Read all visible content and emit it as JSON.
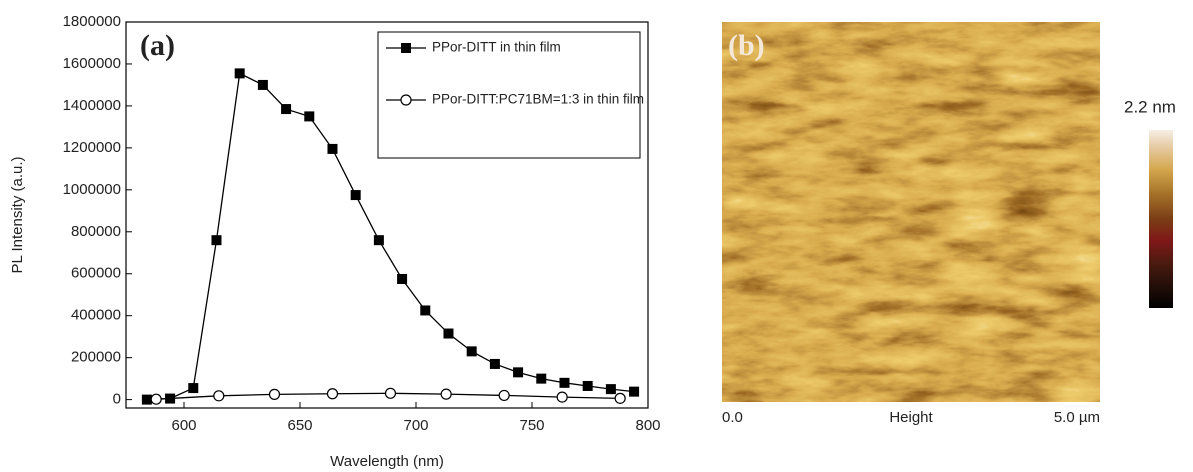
{
  "chart_data": {
    "type": "line",
    "panel_label": "(a)",
    "x_label": "Wavelength (nm)",
    "y_label": "PL Intensity (a.u.)",
    "xlim": [
      575,
      800
    ],
    "xticks": [
      600,
      650,
      700,
      750,
      800
    ],
    "ylim": [
      -40000,
      1800000
    ],
    "yticks": [
      0,
      200000,
      400000,
      600000,
      800000,
      1000000,
      1200000,
      1400000,
      1600000,
      1800000
    ],
    "legend": "upper right",
    "series": [
      {
        "name": "PPor-DITT in thin film",
        "color": "#000000",
        "marker": "filled-square",
        "x": [
          584,
          594,
          604,
          614,
          624,
          634,
          644,
          654,
          664,
          674,
          684,
          694,
          704,
          714,
          724,
          734,
          744,
          754,
          764,
          774,
          784,
          794
        ],
        "values": [
          0,
          5000,
          55000,
          760000,
          1555000,
          1500000,
          1385000,
          1350000,
          1195000,
          975000,
          760000,
          575000,
          425000,
          315000,
          230000,
          170000,
          130000,
          100000,
          80000,
          65000,
          50000,
          38000
        ]
      },
      {
        "name": "PPor-DITT:PC71BM=1:3 in thin film",
        "color": "#000000",
        "marker": "open-circle",
        "x": [
          588,
          615,
          639,
          664,
          689,
          713,
          738,
          763,
          788
        ],
        "values": [
          2000,
          18000,
          25000,
          28000,
          30000,
          26000,
          20000,
          12000,
          6000
        ]
      }
    ]
  },
  "afm_panel": {
    "label": "(b)",
    "scale_label": "2.2 nm",
    "x_start": "0.0",
    "x_caption": "Height",
    "x_end": "5.0 µm"
  }
}
